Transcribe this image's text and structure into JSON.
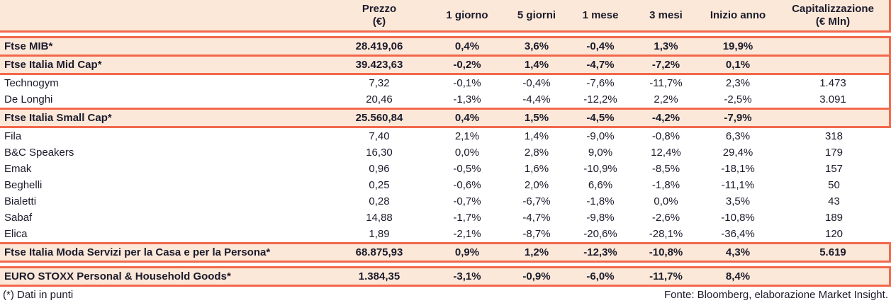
{
  "colors": {
    "accent_border": "#f2684b",
    "row_highlight": "#fce8d9",
    "text": "#1b1b2b"
  },
  "table": {
    "columns": [
      {
        "key": "name",
        "label": ""
      },
      {
        "key": "prezzo",
        "label": "Prezzo",
        "sublabel": "(€)"
      },
      {
        "key": "g1",
        "label": "1 giorno"
      },
      {
        "key": "g5",
        "label": "5 giorni"
      },
      {
        "key": "m1",
        "label": "1 mese"
      },
      {
        "key": "m3",
        "label": "3 mesi"
      },
      {
        "key": "anno",
        "label": "Inizio anno"
      },
      {
        "key": "cap",
        "label": "Capitalizzazione",
        "sublabel": "(€ Mln)"
      }
    ],
    "rows": [
      {
        "id": "ftse-mib",
        "kind": "index",
        "name": "Ftse MIB*",
        "prezzo": "28.419,06",
        "g1": "0,4%",
        "g5": "3,6%",
        "m1": "-0,4%",
        "m3": "1,3%",
        "anno": "19,9%",
        "cap": ""
      },
      {
        "id": "ftse-italia-mid-cap",
        "kind": "index",
        "name": "Ftse Italia Mid Cap*",
        "prezzo": "39.423,63",
        "g1": "-0,2%",
        "g5": "1,4%",
        "m1": "-4,7%",
        "m3": "-7,2%",
        "anno": "0,1%",
        "cap": ""
      },
      {
        "id": "technogym",
        "kind": "stock",
        "name": "Technogym",
        "prezzo": "7,32",
        "g1": "-0,1%",
        "g5": "-0,4%",
        "m1": "-7,6%",
        "m3": "-11,7%",
        "anno": "2,3%",
        "cap": "1.473"
      },
      {
        "id": "de-longhi",
        "kind": "stock",
        "name": "De Longhi",
        "prezzo": "20,46",
        "g1": "-1,3%",
        "g5": "-4,4%",
        "m1": "-12,2%",
        "m3": "2,2%",
        "anno": "-2,5%",
        "cap": "3.091"
      },
      {
        "id": "ftse-italia-small-cap",
        "kind": "index",
        "name": "Ftse Italia Small Cap*",
        "prezzo": "25.560,84",
        "g1": "0,4%",
        "g5": "1,5%",
        "m1": "-4,5%",
        "m3": "-4,2%",
        "anno": "-7,9%",
        "cap": ""
      },
      {
        "id": "fila",
        "kind": "stock",
        "name": "Fila",
        "prezzo": "7,40",
        "g1": "2,1%",
        "g5": "1,4%",
        "m1": "-9,0%",
        "m3": "-0,8%",
        "anno": "6,3%",
        "cap": "318"
      },
      {
        "id": "bc-speakers",
        "kind": "stock",
        "name": "B&C Speakers",
        "prezzo": "16,30",
        "g1": "0,0%",
        "g5": "2,8%",
        "m1": "9,0%",
        "m3": "12,4%",
        "anno": "29,4%",
        "cap": "179"
      },
      {
        "id": "emak",
        "kind": "stock",
        "name": "Emak",
        "prezzo": "0,96",
        "g1": "-0,5%",
        "g5": "1,6%",
        "m1": "-10,9%",
        "m3": "-8,5%",
        "anno": "-18,1%",
        "cap": "157"
      },
      {
        "id": "beghelli",
        "kind": "stock",
        "name": "Beghelli",
        "prezzo": "0,25",
        "g1": "-0,6%",
        "g5": "2,0%",
        "m1": "6,6%",
        "m3": "-1,8%",
        "anno": "-11,1%",
        "cap": "50"
      },
      {
        "id": "bialetti",
        "kind": "stock",
        "name": "Bialetti",
        "prezzo": "0,28",
        "g1": "-0,7%",
        "g5": "-6,7%",
        "m1": "-1,8%",
        "m3": "0,0%",
        "anno": "3,5%",
        "cap": "43"
      },
      {
        "id": "sabaf",
        "kind": "stock",
        "name": "Sabaf",
        "prezzo": "14,88",
        "g1": "-1,7%",
        "g5": "-4,7%",
        "m1": "-9,8%",
        "m3": "-2,6%",
        "anno": "-10,8%",
        "cap": "189"
      },
      {
        "id": "elica",
        "kind": "stock",
        "name": "Elica",
        "prezzo": "1,89",
        "g1": "-2,1%",
        "g5": "-8,7%",
        "m1": "-20,6%",
        "m3": "-28,1%",
        "anno": "-36,4%",
        "cap": "120"
      },
      {
        "id": "ftse-italia-moda",
        "kind": "index",
        "name": "Ftse Italia Moda Servizi per la Casa e per la Persona*",
        "prezzo": "68.875,93",
        "g1": "0,9%",
        "g5": "1,2%",
        "m1": "-12,3%",
        "m3": "-10,8%",
        "anno": "4,3%",
        "cap": "5.619"
      },
      {
        "id": "euro-stoxx-phg",
        "kind": "index",
        "name": "EURO STOXX Personal & Household Goods*",
        "prezzo": "1.384,35",
        "g1": "-3,1%",
        "g5": "-0,9%",
        "m1": "-6,0%",
        "m3": "-11,7%",
        "anno": "8,4%",
        "cap": ""
      }
    ]
  },
  "footer": {
    "footnote": "(*) Dati in punti",
    "source": "Fonte: Bloomberg, elaborazione Market Insight."
  }
}
